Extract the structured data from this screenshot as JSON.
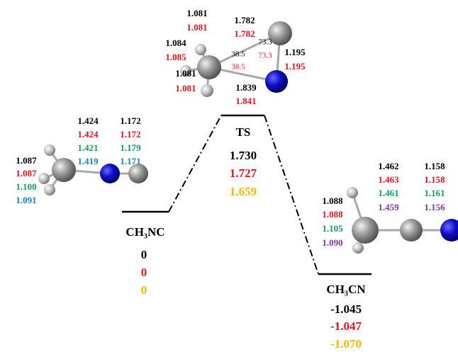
{
  "reactant": {
    "name": "CH₃NC",
    "energies": [
      "0",
      "0",
      "0"
    ],
    "labels": {
      "ch": [
        "1.087",
        "1.087",
        "1.100",
        "1.091"
      ],
      "cn": [
        "1.424",
        "1.424",
        "1.421",
        "1.419"
      ],
      "nc": [
        "1.172",
        "1.172",
        "1.179",
        "1.171"
      ]
    }
  },
  "ts": {
    "name": "TS",
    "energies": [
      "1.730",
      "1.727",
      "1.659"
    ],
    "labels": {
      "ch_top": [
        "1.081",
        "1.081"
      ],
      "ch_left": [
        "1.084",
        "1.085"
      ],
      "ch_bottom": [
        "1.081",
        "1.081"
      ],
      "cc": [
        "1.782",
        "1.782"
      ],
      "angle_c": [
        "38.5",
        "38.5"
      ],
      "angle_top": [
        "73.3",
        "73.3"
      ],
      "nc": [
        "1.195",
        "1.195"
      ],
      "cn": [
        "1.839",
        "1.841"
      ]
    }
  },
  "product": {
    "name": "CH₃CN",
    "energies": [
      "-1.045",
      "-1.047",
      "-1.070"
    ],
    "labels": {
      "ch": [
        "1.088",
        "1.088",
        "1.105",
        "1.090"
      ],
      "cc": [
        "1.462",
        "1.463",
        "1.461",
        "1.459"
      ],
      "cn": [
        "1.158",
        "1.158",
        "1.161",
        "1.156"
      ]
    }
  }
}
